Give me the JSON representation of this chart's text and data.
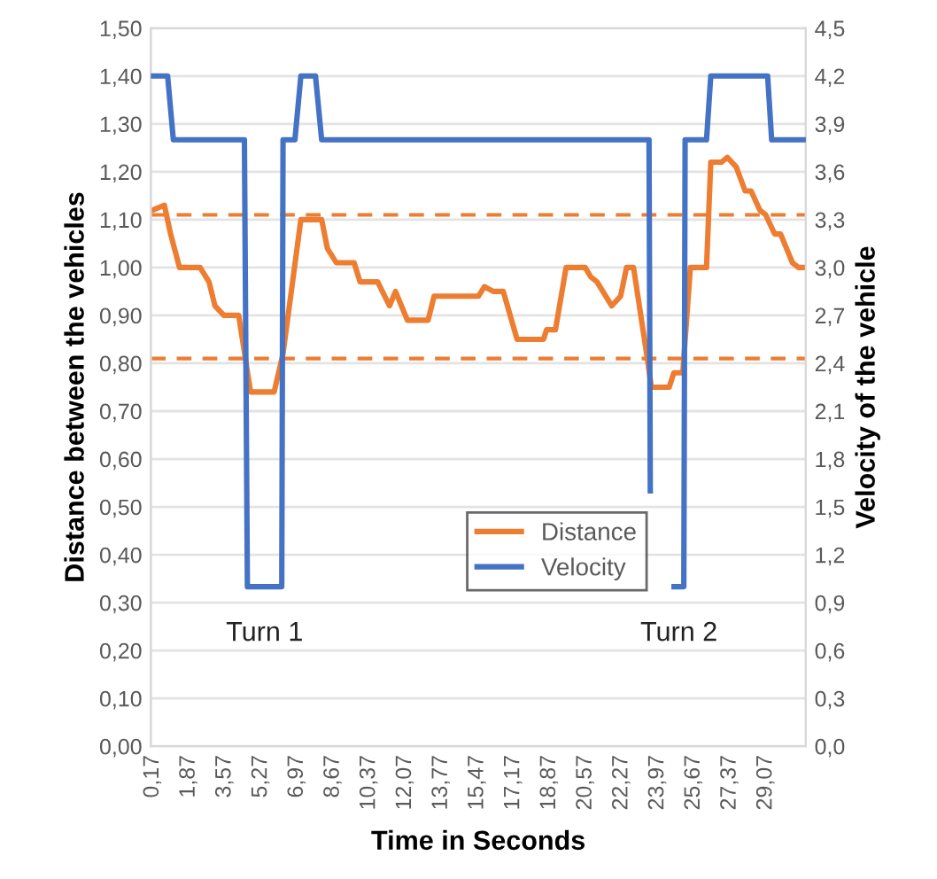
{
  "chart_data": {
    "type": "line",
    "xlabel": "Time in Seconds",
    "ylabel": "Distance between the vehicles",
    "y2label": "Velocity of the vehicle",
    "xlim": [
      0.08,
      30.95
    ],
    "xticks": [
      {
        "value": 0.17,
        "label": "0,17"
      },
      {
        "value": 1.87,
        "label": "1,87"
      },
      {
        "value": 3.57,
        "label": "3,57"
      },
      {
        "value": 5.27,
        "label": "5,27"
      },
      {
        "value": 6.97,
        "label": "6,97"
      },
      {
        "value": 8.67,
        "label": "8,67"
      },
      {
        "value": 10.37,
        "label": "10,37"
      },
      {
        "value": 12.07,
        "label": "12,07"
      },
      {
        "value": 13.77,
        "label": "13,77"
      },
      {
        "value": 15.47,
        "label": "15,47"
      },
      {
        "value": 17.17,
        "label": "17,17"
      },
      {
        "value": 18.87,
        "label": "18,87"
      },
      {
        "value": 20.57,
        "label": "20,57"
      },
      {
        "value": 22.27,
        "label": "22,27"
      },
      {
        "value": 23.97,
        "label": "23,97"
      },
      {
        "value": 25.67,
        "label": "25,67"
      },
      {
        "value": 27.37,
        "label": "27,37"
      },
      {
        "value": 29.07,
        "label": "29,07"
      }
    ],
    "ylim": [
      0,
      1.5
    ],
    "yticks": [
      {
        "value": 0,
        "label": "0,00"
      },
      {
        "value": 0.1,
        "label": "0,10"
      },
      {
        "value": 0.2,
        "label": "0,20"
      },
      {
        "value": 0.3,
        "label": "0,30"
      },
      {
        "value": 0.4,
        "label": "0,40"
      },
      {
        "value": 0.5,
        "label": "0,50"
      },
      {
        "value": 0.6,
        "label": "0,60"
      },
      {
        "value": 0.7,
        "label": "0,70"
      },
      {
        "value": 0.8,
        "label": "0,80"
      },
      {
        "value": 0.9,
        "label": "0,90"
      },
      {
        "value": 1.0,
        "label": "1,00"
      },
      {
        "value": 1.1,
        "label": "1,10"
      },
      {
        "value": 1.2,
        "label": "1,20"
      },
      {
        "value": 1.3,
        "label": "1,30"
      },
      {
        "value": 1.4,
        "label": "1,40"
      },
      {
        "value": 1.5,
        "label": "1,50"
      }
    ],
    "y2lim": [
      0,
      4.5
    ],
    "y2ticks": [
      {
        "value": 0,
        "label": "0,0"
      },
      {
        "value": 0.3,
        "label": "0,3"
      },
      {
        "value": 0.6,
        "label": "0,6"
      },
      {
        "value": 0.9,
        "label": "0,9"
      },
      {
        "value": 1.2,
        "label": "1,2"
      },
      {
        "value": 1.5,
        "label": "1,5"
      },
      {
        "value": 1.8,
        "label": "1,8"
      },
      {
        "value": 2.1,
        "label": "2,1"
      },
      {
        "value": 2.4,
        "label": "2,4"
      },
      {
        "value": 2.7,
        "label": "2,7"
      },
      {
        "value": 3.0,
        "label": "3,0"
      },
      {
        "value": 3.3,
        "label": "3,3"
      },
      {
        "value": 3.6,
        "label": "3,6"
      },
      {
        "value": 3.9,
        "label": "3,9"
      },
      {
        "value": 4.2,
        "label": "4,2"
      },
      {
        "value": 4.5,
        "label": "4,5"
      }
    ],
    "grid": "y",
    "legend": "bottom",
    "marker": "none",
    "line_style": "solid",
    "series": [
      {
        "name": "Distance",
        "color": "#ed7d31",
        "axis": "y",
        "x": [
          0.17,
          0.72,
          1.01,
          1.43,
          2.4,
          2.82,
          3.1,
          3.52,
          4.22,
          4.78,
          5.89,
          6.31,
          7.15,
          8.13,
          8.4,
          8.82,
          9.66,
          9.94,
          10.77,
          11.33,
          11.61,
          12.17,
          13.15,
          13.43,
          15.52,
          15.8,
          16.22,
          16.69,
          17.34,
          18.59,
          18.73,
          19.15,
          19.65,
          20.55,
          20.82,
          21.11,
          21.8,
          22.22,
          22.5,
          22.83,
          23.48,
          23.67,
          24.51,
          24.73,
          25.15,
          25.51,
          26.27,
          26.47,
          26.97,
          27.25,
          27.67,
          28.09,
          28.37,
          28.78,
          29.06,
          29.48,
          29.76,
          30.32,
          30.6,
          30.87
        ],
        "values": [
          1.12,
          1.13,
          1.07,
          1.0,
          1.0,
          0.97,
          0.92,
          0.9,
          0.9,
          0.74,
          0.74,
          0.82,
          1.1,
          1.1,
          1.04,
          1.01,
          1.01,
          0.97,
          0.97,
          0.92,
          0.95,
          0.89,
          0.89,
          0.94,
          0.94,
          0.96,
          0.95,
          0.95,
          0.85,
          0.85,
          0.87,
          0.87,
          1.0,
          1.0,
          0.98,
          0.97,
          0.92,
          0.94,
          1.0,
          1.0,
          0.81,
          0.75,
          0.75,
          0.78,
          0.78,
          1.0,
          1.0,
          1.22,
          1.22,
          1.23,
          1.21,
          1.16,
          1.16,
          1.12,
          1.11,
          1.07,
          1.07,
          1.01,
          1.0,
          1.0
        ]
      },
      {
        "name": "Velocity",
        "color": "#4472c4",
        "axis": "y2",
        "x": [
          0.17,
          0.87,
          1.14,
          4.49,
          4.63,
          6.25,
          6.31,
          6.87,
          7.15,
          7.84,
          8.13,
          23.56,
          23.62,
          24.2,
          24.74,
          25.2,
          25.26,
          26.27,
          26.47,
          29.15,
          29.34,
          30.87
        ],
        "values": [
          4.2,
          4.2,
          3.8,
          3.8,
          1.0,
          1.0,
          3.8,
          3.8,
          4.2,
          4.2,
          3.8,
          3.8,
          1.6,
          null,
          1.0,
          1.0,
          3.8,
          3.8,
          4.2,
          4.2,
          3.8,
          3.8
        ]
      }
    ],
    "ref_lines": [
      {
        "axis": "y",
        "value": 1.11,
        "color": "#ed7d31",
        "line_style": "dashed"
      },
      {
        "axis": "y",
        "value": 0.81,
        "color": "#ed7d31",
        "line_style": "dashed"
      }
    ],
    "annotations": [
      "Turn 1",
      "Turn 2"
    ]
  }
}
